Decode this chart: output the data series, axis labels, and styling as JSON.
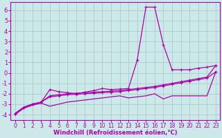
{
  "background_color": "#cde8e8",
  "grid_color": "#b8d8d8",
  "line_color": "#aa00aa",
  "xlabel": "Windchill (Refroidissement éolien,°C)",
  "xlim": [
    -0.5,
    23.5
  ],
  "ylim": [
    -4.5,
    6.8
  ],
  "yticks": [
    -4,
    -3,
    -2,
    -1,
    0,
    1,
    2,
    3,
    4,
    5,
    6
  ],
  "xticks": [
    0,
    1,
    2,
    3,
    4,
    5,
    6,
    7,
    8,
    9,
    10,
    11,
    12,
    13,
    14,
    15,
    16,
    17,
    18,
    19,
    20,
    21,
    22,
    23
  ],
  "series": [
    {
      "x": [
        0,
        1,
        2,
        3,
        4,
        5,
        6,
        7,
        8,
        9,
        10,
        11,
        12,
        13,
        14,
        15,
        16,
        17,
        18,
        19,
        20,
        21,
        22,
        23
      ],
      "y": [
        -3.9,
        -3.3,
        -3.0,
        -2.8,
        -1.6,
        -1.8,
        -1.9,
        -2.0,
        -1.85,
        -1.7,
        -1.5,
        -1.6,
        -1.55,
        -1.5,
        1.2,
        6.3,
        6.3,
        2.7,
        0.3,
        0.3,
        0.3,
        0.45,
        0.55,
        0.7
      ]
    },
    {
      "x": [
        0,
        1,
        2,
        3,
        4,
        5,
        6,
        7,
        8,
        9,
        10,
        11,
        12,
        13,
        14,
        15,
        16,
        17,
        18,
        19,
        20,
        21,
        22,
        23
      ],
      "y": [
        -3.9,
        -3.3,
        -3.0,
        -2.8,
        -2.2,
        -2.1,
        -2.0,
        -1.95,
        -1.9,
        -1.85,
        -1.8,
        -1.75,
        -1.7,
        -1.6,
        -1.5,
        -1.4,
        -1.3,
        -1.15,
        -1.0,
        -0.85,
        -0.7,
        -0.55,
        -0.4,
        0.7
      ]
    },
    {
      "x": [
        0,
        1,
        2,
        3,
        4,
        5,
        6,
        7,
        8,
        9,
        10,
        11,
        12,
        13,
        14,
        15,
        16,
        17,
        18,
        19,
        20,
        21,
        22,
        23
      ],
      "y": [
        -3.9,
        -3.3,
        -3.0,
        -2.8,
        -2.3,
        -2.2,
        -2.1,
        -2.05,
        -2.0,
        -1.95,
        -1.9,
        -1.85,
        -1.8,
        -1.7,
        -1.6,
        -1.5,
        -1.4,
        -1.25,
        -1.1,
        -0.95,
        -0.8,
        -0.65,
        -0.5,
        0.1
      ]
    },
    {
      "x": [
        0,
        1,
        2,
        3,
        4,
        5,
        6,
        7,
        8,
        9,
        10,
        11,
        12,
        13,
        14,
        15,
        16,
        17,
        18,
        19,
        20,
        21,
        22,
        23
      ],
      "y": [
        -4.0,
        -3.4,
        -3.1,
        -2.9,
        -3.2,
        -3.0,
        -2.8,
        -2.7,
        -2.6,
        -2.5,
        -2.4,
        -2.3,
        -2.2,
        -2.4,
        -2.3,
        -2.2,
        -2.0,
        -2.5,
        -2.2,
        -2.2,
        -2.2,
        -2.2,
        -2.2,
        0.1
      ]
    }
  ]
}
